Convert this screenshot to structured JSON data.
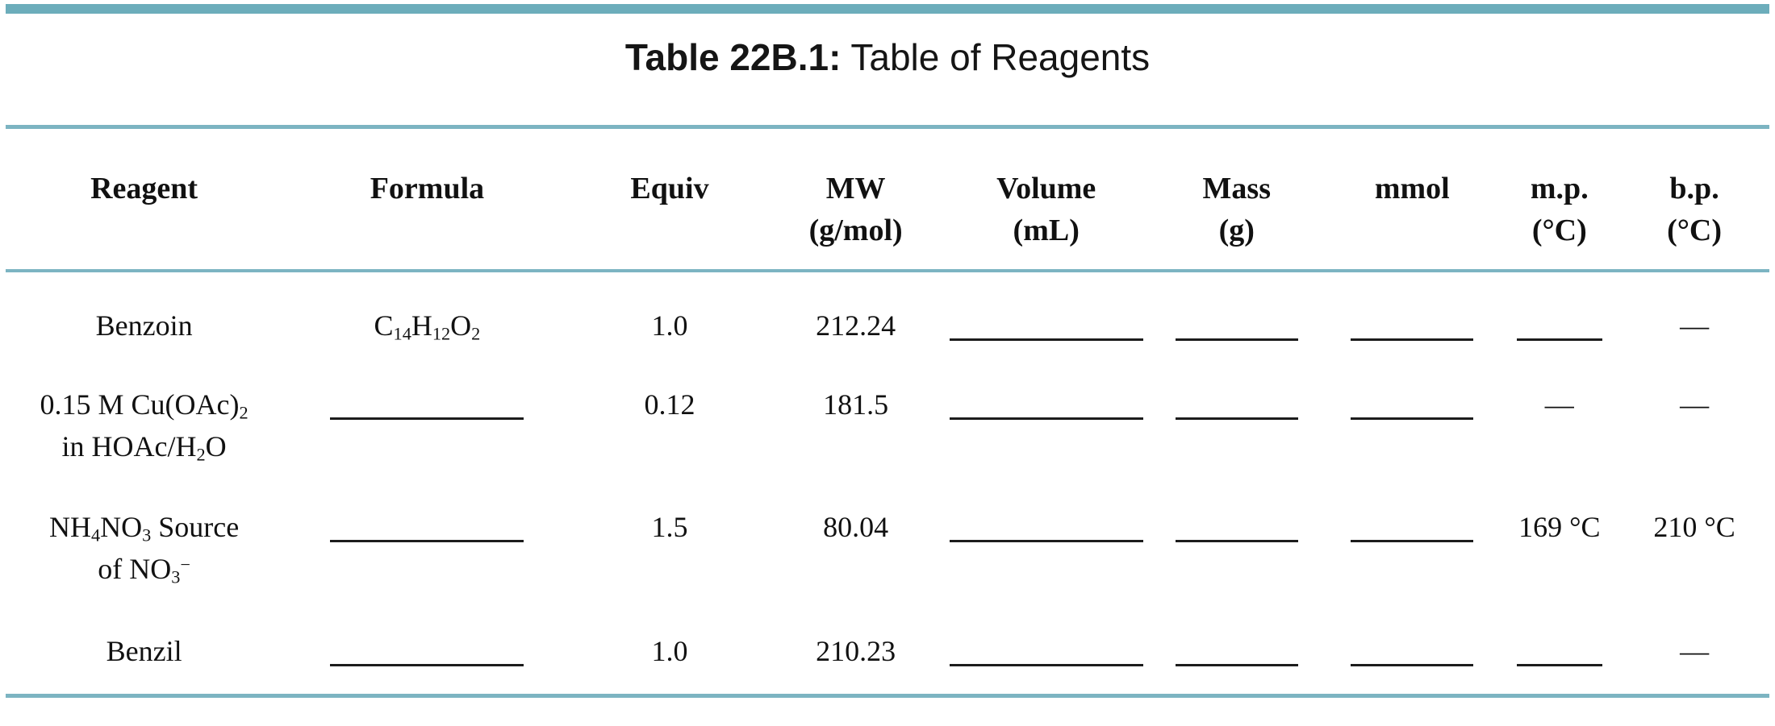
{
  "title": {
    "bold": "Table 22B.1:",
    "rest": " Table of Reagents"
  },
  "colors": {
    "teal_bar": "#6cadbb",
    "teal_line": "#7cb4c2",
    "underline": "#1c1c1c",
    "text": "#111111"
  },
  "table": {
    "columns": [
      {
        "id": "reagent",
        "line1": "Reagent",
        "line2": "",
        "blank_w": 240
      },
      {
        "id": "formula",
        "line1": "Formula",
        "line2": "",
        "blank_w": 240
      },
      {
        "id": "equiv",
        "line1": "Equiv",
        "line2": "",
        "blank_w": 150
      },
      {
        "id": "mw",
        "line1": "MW",
        "line2": "(g/mol)",
        "blank_w": 150
      },
      {
        "id": "volume",
        "line1": "Volume",
        "line2": "(mL)",
        "blank_w": 240
      },
      {
        "id": "mass",
        "line1": "Mass",
        "line2": "(g)",
        "blank_w": 152
      },
      {
        "id": "mmol",
        "line1": "mmol",
        "line2": "",
        "blank_w": 152
      },
      {
        "id": "mp",
        "line1": "m.p.",
        "line2": "(°C)",
        "blank_w": 106
      },
      {
        "id": "bp",
        "line1": "b.p.",
        "line2": "(°C)",
        "blank_w": 106
      }
    ],
    "dash_char": "—",
    "rows": [
      {
        "cells": [
          {
            "t": "html",
            "v": "Benzoin"
          },
          {
            "t": "html",
            "v": "C<sub>14</sub>H<sub>12</sub>O<sub>2</sub>"
          },
          {
            "t": "text",
            "v": "1.0"
          },
          {
            "t": "text",
            "v": "212.24"
          },
          {
            "t": "blank"
          },
          {
            "t": "blank"
          },
          {
            "t": "blank"
          },
          {
            "t": "blank"
          },
          {
            "t": "dash"
          }
        ]
      },
      {
        "cells": [
          {
            "t": "html",
            "v": "0.15 M Cu(OAc)<sub>2</sub><br>in HOAc/H<sub>2</sub>O"
          },
          {
            "t": "blank"
          },
          {
            "t": "text",
            "v": "0.12"
          },
          {
            "t": "text",
            "v": "181.5"
          },
          {
            "t": "blank"
          },
          {
            "t": "blank"
          },
          {
            "t": "blank"
          },
          {
            "t": "dash"
          },
          {
            "t": "dash"
          }
        ]
      },
      {
        "cells": [
          {
            "t": "html",
            "v": "NH<sub>4</sub>NO<sub>3</sub> Source<br>of NO<sub>3</sub><sup>−</sup>"
          },
          {
            "t": "blank"
          },
          {
            "t": "text",
            "v": "1.5"
          },
          {
            "t": "text",
            "v": "80.04"
          },
          {
            "t": "blank"
          },
          {
            "t": "blank"
          },
          {
            "t": "blank"
          },
          {
            "t": "text",
            "v": "169 °C"
          },
          {
            "t": "text",
            "v": "210 °C"
          }
        ]
      },
      {
        "cells": [
          {
            "t": "html",
            "v": "Benzil"
          },
          {
            "t": "blank"
          },
          {
            "t": "text",
            "v": "1.0"
          },
          {
            "t": "text",
            "v": "210.23"
          },
          {
            "t": "blank"
          },
          {
            "t": "blank"
          },
          {
            "t": "blank"
          },
          {
            "t": "blank"
          },
          {
            "t": "dash"
          }
        ]
      }
    ]
  }
}
